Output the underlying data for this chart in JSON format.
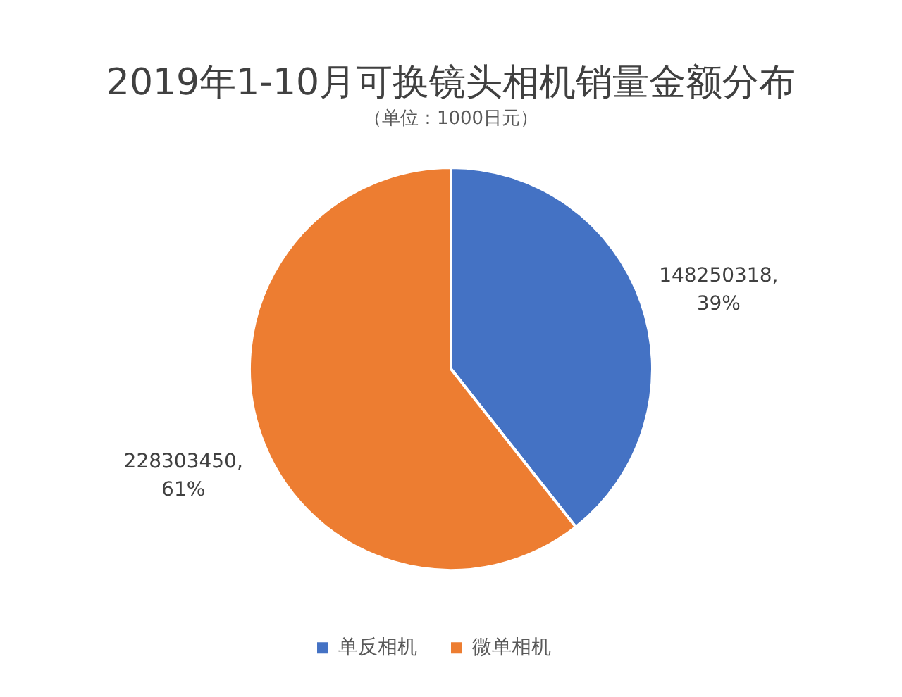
{
  "chart_data": {
    "type": "pie",
    "title": "2019年1-10月可换镜头相机销量金额分布",
    "subtitle": "（单位：1000日元）",
    "categories": [
      "单反相机",
      "微单相机"
    ],
    "values": [
      148250318,
      228303450
    ],
    "colors": [
      "#4472c4",
      "#ed7d31"
    ],
    "value_labels": [
      "148250318,\n39%",
      "228303450,\n61%"
    ],
    "legend": "bottom"
  }
}
